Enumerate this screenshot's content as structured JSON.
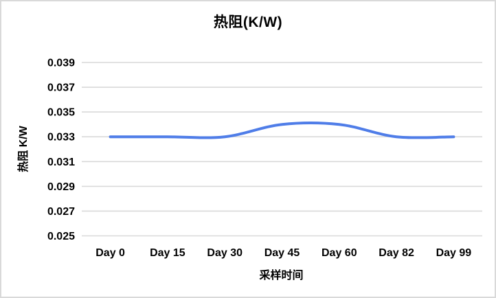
{
  "chart_data": {
    "type": "line",
    "title": "热阻(K/W)",
    "xlabel": "采样时间",
    "ylabel": "热阻 K/W",
    "categories": [
      "Day 0",
      "Day 15",
      "Day 30",
      "Day 45",
      "Day 60",
      "Day 82",
      "Day 99"
    ],
    "values": [
      0.033,
      0.033,
      0.033,
      0.034,
      0.034,
      0.033,
      0.033
    ],
    "ylim": [
      0.025,
      0.039
    ],
    "yticks": [
      0.039,
      0.037,
      0.035,
      0.033,
      0.031,
      0.029,
      0.027,
      0.025
    ],
    "ytick_labels": [
      "0.039",
      "0.037",
      "0.035",
      "0.033",
      "0.031",
      "0.029",
      "0.027",
      "0.025"
    ],
    "grid": true,
    "legend": "none",
    "smooth": true,
    "line_color": "#4f7de8",
    "grid_color": "#d9d9d9",
    "text_color": "#000000",
    "frame_border_color": "#d9d9d9",
    "background_color": "#ffffff"
  }
}
